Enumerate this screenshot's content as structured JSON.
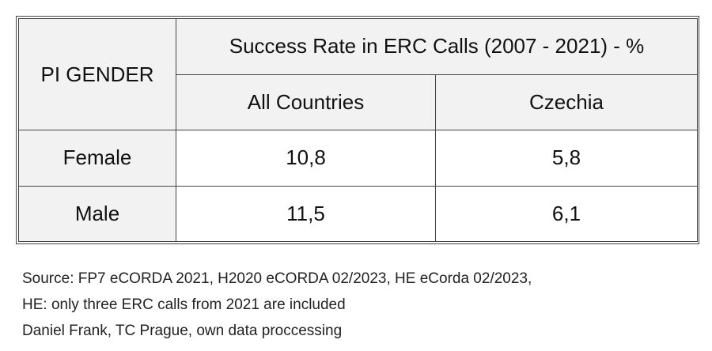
{
  "table": {
    "corner": "PI GENDER",
    "title": "Success Rate in ERC Calls  (2007 - 2021) - %",
    "columns": [
      "All Countries",
      "Czechia"
    ],
    "rows": [
      [
        "Female",
        "10,8",
        "5,8"
      ],
      [
        "Male",
        "11,5",
        "6,1"
      ]
    ]
  },
  "notes": [
    "Source: FP7 eCORDA 2021, H2020 eCORDA 02/2023, HE eCorda 02/2023,",
    "HE: only three ERC calls from 2021 are included",
    "Daniel Frank, TC Prague, own data proccessing"
  ]
}
